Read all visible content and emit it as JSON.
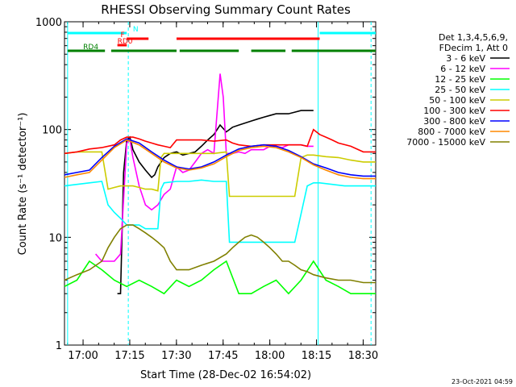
{
  "chart_data": {
    "type": "line",
    "title": "RHESSI Observing Summary Count Rates",
    "xlabel": "Start Time (28-Dec-02 16:54:02)",
    "ylabel": "Count Rate (s⁻¹ detector⁻¹)",
    "x_unit": "minutes after 2002-12-28 16:54:02",
    "xlim": [
      0,
      100
    ],
    "ylim": [
      1,
      1000
    ],
    "yscale": "log",
    "x_ticks": [
      {
        "x": 5.97,
        "label": "17:00"
      },
      {
        "x": 20.97,
        "label": "17:15"
      },
      {
        "x": 35.97,
        "label": "17:30"
      },
      {
        "x": 50.97,
        "label": "17:45"
      },
      {
        "x": 65.97,
        "label": "18:00"
      },
      {
        "x": 80.97,
        "label": "18:15"
      },
      {
        "x": 95.97,
        "label": "18:30"
      }
    ],
    "y_ticks": [
      {
        "y": 1,
        "label": "1"
      },
      {
        "y": 10,
        "label": "10"
      },
      {
        "y": 100,
        "label": "100"
      },
      {
        "y": 1000,
        "label": "1000"
      }
    ],
    "legend_header": [
      "Det 1,3,4,5,6,9,",
      "FDecim 1, Att 0"
    ],
    "legend_position": "right",
    "series": [
      {
        "name": "3 - 6 keV",
        "color": "#000000",
        "x": [
          0,
          2,
          4,
          6,
          8,
          10,
          12,
          14,
          16,
          17,
          18,
          19,
          20,
          21,
          22,
          24,
          26,
          28,
          29,
          30,
          32,
          34,
          36,
          38,
          40,
          42,
          44,
          46,
          48,
          50,
          52,
          54,
          56,
          58,
          60,
          62,
          64,
          66,
          68,
          70,
          72,
          74,
          76,
          78,
          80,
          81,
          82,
          83
        ],
        "y": [
          null,
          null,
          null,
          null,
          null,
          null,
          null,
          null,
          null,
          3,
          3,
          40,
          80,
          85,
          65,
          50,
          42,
          36,
          38,
          45,
          55,
          60,
          62,
          58,
          60,
          62,
          70,
          80,
          90,
          110,
          95,
          105,
          110,
          115,
          120,
          125,
          130,
          135,
          140,
          140,
          140,
          145,
          150,
          150,
          150,
          null,
          null,
          null
        ]
      },
      {
        "name": "6 - 12 keV",
        "color": "#ff00ff",
        "x": [
          10,
          12,
          14,
          16,
          18,
          20,
          21,
          22,
          24,
          26,
          28,
          30,
          32,
          34,
          36,
          38,
          40,
          42,
          44,
          46,
          48,
          50,
          51,
          52,
          54,
          56,
          58,
          60,
          62,
          64,
          66,
          68,
          70,
          72,
          74,
          76,
          78,
          80,
          80.5
        ],
        "y": [
          7,
          6,
          6,
          6,
          7,
          75,
          80,
          55,
          30,
          20,
          18,
          20,
          25,
          28,
          45,
          40,
          42,
          50,
          60,
          65,
          60,
          330,
          200,
          60,
          60,
          62,
          60,
          65,
          65,
          65,
          70,
          70,
          68,
          72,
          72,
          72,
          70,
          70,
          null
        ]
      },
      {
        "name": "12 - 25 keV",
        "color": "#00ff00",
        "x": [
          0,
          4,
          8,
          12,
          16,
          20,
          24,
          28,
          32,
          36,
          40,
          44,
          48,
          52,
          56,
          60,
          64,
          68,
          72,
          76,
          80,
          84,
          88,
          92,
          96,
          100
        ],
        "y": [
          3.5,
          4,
          6,
          5,
          4,
          3.5,
          4,
          3.5,
          3,
          4,
          3.5,
          4,
          5,
          6,
          3,
          3,
          3.5,
          4,
          3,
          4,
          6,
          4,
          3.5,
          3,
          3,
          3
        ]
      },
      {
        "name": "25 - 50 keV",
        "color": "#00ffff",
        "x": [
          0,
          4,
          8,
          12,
          14,
          16,
          18,
          20,
          22,
          24,
          26,
          28,
          30,
          31,
          32,
          36,
          40,
          44,
          48,
          52,
          53,
          54,
          58,
          62,
          66,
          70,
          74,
          78,
          80,
          82,
          86,
          90,
          94,
          98,
          100
        ],
        "y": [
          30,
          31,
          32,
          33,
          20,
          17,
          15,
          13,
          13,
          13,
          12,
          12,
          12,
          28,
          32,
          33,
          33,
          34,
          33,
          33,
          9,
          9,
          9,
          9,
          9,
          9,
          9,
          30,
          32,
          32,
          31,
          30,
          30,
          30,
          30
        ]
      },
      {
        "name": "50 - 100 keV",
        "color": "#cccc00",
        "x": [
          0,
          4,
          8,
          12,
          14,
          16,
          18,
          20,
          22,
          24,
          26,
          28,
          30,
          31,
          32,
          36,
          40,
          44,
          48,
          52,
          53,
          54,
          58,
          62,
          66,
          70,
          74,
          76,
          78,
          80,
          84,
          88,
          92,
          96,
          100
        ],
        "y": [
          60,
          62,
          62,
          62,
          28,
          29,
          30,
          30,
          30,
          29,
          28,
          28,
          27,
          55,
          60,
          60,
          60,
          60,
          60,
          62,
          24,
          24,
          24,
          24,
          24,
          24,
          24,
          55,
          58,
          58,
          56,
          55,
          52,
          50,
          50
        ]
      },
      {
        "name": "100 - 300 keV",
        "color": "#ff0000",
        "x": [
          0,
          4,
          8,
          12,
          16,
          18,
          20,
          22,
          24,
          26,
          28,
          30,
          32,
          34,
          36,
          40,
          44,
          48,
          52,
          54,
          56,
          60,
          64,
          68,
          72,
          76,
          78,
          80,
          82,
          84,
          86,
          88,
          92,
          96,
          100
        ],
        "y": [
          60,
          62,
          66,
          68,
          72,
          80,
          85,
          85,
          82,
          78,
          75,
          72,
          70,
          68,
          80,
          80,
          80,
          78,
          80,
          75,
          72,
          70,
          72,
          72,
          72,
          72,
          70,
          100,
          90,
          85,
          80,
          75,
          70,
          62,
          62
        ]
      },
      {
        "name": "300 - 800 keV",
        "color": "#0000ff",
        "x": [
          0,
          4,
          8,
          12,
          16,
          20,
          24,
          28,
          32,
          36,
          40,
          44,
          48,
          52,
          56,
          60,
          64,
          68,
          72,
          76,
          80,
          84,
          88,
          92,
          96,
          100
        ],
        "y": [
          38,
          40,
          42,
          55,
          70,
          82,
          75,
          62,
          52,
          45,
          43,
          45,
          50,
          58,
          66,
          70,
          72,
          70,
          64,
          56,
          48,
          44,
          40,
          38,
          37,
          37
        ]
      },
      {
        "name": "800 - 7000 keV",
        "color": "#ff8800",
        "x": [
          0,
          4,
          8,
          12,
          16,
          20,
          24,
          28,
          32,
          36,
          40,
          44,
          48,
          52,
          56,
          60,
          64,
          68,
          72,
          76,
          80,
          84,
          88,
          92,
          96,
          100
        ],
        "y": [
          36,
          38,
          40,
          52,
          68,
          80,
          72,
          60,
          50,
          44,
          42,
          44,
          48,
          56,
          64,
          68,
          70,
          68,
          62,
          55,
          47,
          42,
          38,
          36,
          35,
          35
        ]
      },
      {
        "name": "7000 - 15000 keV",
        "color": "#808000",
        "x": [
          0,
          4,
          8,
          12,
          14,
          16,
          18,
          20,
          22,
          24,
          26,
          28,
          30,
          32,
          34,
          36,
          40,
          44,
          48,
          52,
          54,
          56,
          58,
          60,
          62,
          64,
          66,
          68,
          70,
          72,
          74,
          76,
          78,
          80,
          84,
          88,
          92,
          96,
          100
        ],
        "y": [
          4,
          4.5,
          5,
          6,
          8,
          10,
          12,
          13,
          13,
          12,
          11,
          10,
          9,
          8,
          6,
          5,
          5,
          5.5,
          6,
          7,
          8,
          9,
          10,
          10.5,
          10,
          9,
          8,
          7,
          6,
          6,
          5.5,
          5,
          4.8,
          4.5,
          4.2,
          4,
          4,
          3.8,
          3.8
        ]
      }
    ],
    "spans": [
      {
        "label": "N",
        "color": "#00ffff",
        "segments": [
          [
            1,
            20
          ],
          [
            82,
            100
          ]
        ]
      },
      {
        "label": "F",
        "color": "#ff0000",
        "segments": [
          [
            20,
            27
          ],
          [
            36,
            82
          ]
        ]
      },
      {
        "label": "RD0",
        "color": "#ff0000",
        "segments": [
          [
            17,
            20
          ]
        ]
      },
      {
        "label": "RD4",
        "color": "#008000",
        "segments": [
          [
            1,
            13
          ],
          [
            15,
            36
          ],
          [
            37,
            56
          ],
          [
            60,
            71
          ],
          [
            73,
            100
          ]
        ]
      }
    ],
    "vertical_markers": [
      {
        "x": 1,
        "color": "#00ffff",
        "style": "solid"
      },
      {
        "x": 20.5,
        "color": "#00ffff",
        "style": "dashed"
      },
      {
        "x": 81.5,
        "color": "#00ffff",
        "style": "solid"
      },
      {
        "x": 98.5,
        "color": "#00ffff",
        "style": "dashed"
      }
    ],
    "grid": false
  },
  "timestamp": "23-Oct-2021 04:59"
}
